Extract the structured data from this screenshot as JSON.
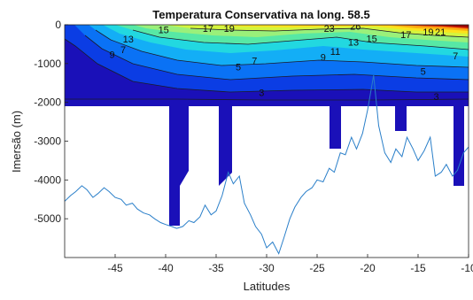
{
  "chart_data": {
    "type": "contour",
    "title": "Temperatura Conservativa na long. 58.5",
    "xlabel": "Latitudes",
    "ylabel": "Imersão (m)",
    "xlim": [
      -50,
      -10
    ],
    "ylim": [
      -6000,
      0
    ],
    "x_ticks": [
      -45,
      -40,
      -35,
      -30,
      -25,
      -20,
      -15,
      -10
    ],
    "x_tick_labels": [
      "-45",
      "-40",
      "-35",
      "-30",
      "-25",
      "-20",
      "-15",
      "-10"
    ],
    "y_ticks": [
      0,
      -1000,
      -2000,
      -3000,
      -4000,
      -5000
    ],
    "y_tick_labels": [
      "0",
      "-1000",
      "-2000",
      "-3000",
      "-4000",
      "-5000"
    ],
    "grid": false,
    "colormap": "jet",
    "contour_levels": [
      1,
      3,
      5,
      7,
      9,
      11,
      13,
      15,
      17,
      19,
      21,
      23,
      25,
      27
    ],
    "contour_labels": [
      {
        "text": "13",
        "lat": -43.7,
        "depth": -370
      },
      {
        "text": "15",
        "lat": -40.2,
        "depth": -130
      },
      {
        "text": "17",
        "lat": -35.8,
        "depth": -90
      },
      {
        "text": "19",
        "lat": -33.7,
        "depth": -90
      },
      {
        "text": "9",
        "lat": -45.3,
        "depth": -760
      },
      {
        "text": "7",
        "lat": -44.2,
        "depth": -640
      },
      {
        "text": "7",
        "lat": -31.2,
        "depth": -920
      },
      {
        "text": "5",
        "lat": -32.8,
        "depth": -1080
      },
      {
        "text": "9",
        "lat": -24.4,
        "depth": -830
      },
      {
        "text": "11",
        "lat": -23.2,
        "depth": -680
      },
      {
        "text": "13",
        "lat": -21.4,
        "depth": -450
      },
      {
        "text": "15",
        "lat": -19.6,
        "depth": -350
      },
      {
        "text": "23",
        "lat": -23.8,
        "depth": -90
      },
      {
        "text": "26",
        "lat": -21.2,
        "depth": -30
      },
      {
        "text": "17",
        "lat": -16.2,
        "depth": -250
      },
      {
        "text": "19",
        "lat": -14.0,
        "depth": -180
      },
      {
        "text": "21",
        "lat": -12.8,
        "depth": -180
      },
      {
        "text": "7",
        "lat": -11.3,
        "depth": -800
      },
      {
        "text": "5",
        "lat": -14.5,
        "depth": -1200
      },
      {
        "text": "3",
        "lat": -30.5,
        "depth": -1750
      },
      {
        "text": "3",
        "lat": -13.2,
        "depth": -1850
      }
    ],
    "bathymetry": {
      "lat": [
        -50,
        -49.4,
        -48.9,
        -48.3,
        -47.8,
        -47.2,
        -46.7,
        -46.1,
        -45.6,
        -45,
        -44.4,
        -43.9,
        -43.3,
        -42.8,
        -42.2,
        -41.6,
        -41.1,
        -40.5,
        -40,
        -39.4,
        -38.9,
        -38.3,
        -37.7,
        -37.2,
        -36.6,
        -36.1,
        -35.5,
        -35,
        -34.4,
        -33.8,
        -33.3,
        -32.7,
        -32.2,
        -31.6,
        -31.1,
        -30.5,
        -30,
        -29.4,
        -28.8,
        -28.3,
        -27.7,
        -27.2,
        -26.6,
        -26.1,
        -25.5,
        -25,
        -24.4,
        -23.8,
        -23.3,
        -22.7,
        -22.2,
        -21.6,
        -21.1,
        -20.5,
        -20,
        -19.4,
        -18.9,
        -18.3,
        -17.7,
        -17.2,
        -16.6,
        -16.1,
        -15.5,
        -15,
        -14.4,
        -13.8,
        -13.3,
        -12.7,
        -12.2,
        -11.6,
        -11.1,
        -10.5,
        -10
      ],
      "depth": [
        -4550,
        -4400,
        -4300,
        -4150,
        -4250,
        -4450,
        -4350,
        -4200,
        -4300,
        -4450,
        -4500,
        -4650,
        -4600,
        -4750,
        -4850,
        -4900,
        -5000,
        -5100,
        -5150,
        -5200,
        -5250,
        -5200,
        -5050,
        -5100,
        -4950,
        -4650,
        -4900,
        -4800,
        -4400,
        -3800,
        -4100,
        -3900,
        -4600,
        -4900,
        -5200,
        -5400,
        -5750,
        -5600,
        -5900,
        -5500,
        -5000,
        -4700,
        -4450,
        -4300,
        -4200,
        -4000,
        -4050,
        -3700,
        -3800,
        -3300,
        -3350,
        -2900,
        -3200,
        -2800,
        -2200,
        -1300,
        -2600,
        -3300,
        -3550,
        -3200,
        -3400,
        -2900,
        -3200,
        -3500,
        -3250,
        -2900,
        -3900,
        -3800,
        -3600,
        -3900,
        -3750,
        -3300,
        -3150
      ]
    }
  }
}
